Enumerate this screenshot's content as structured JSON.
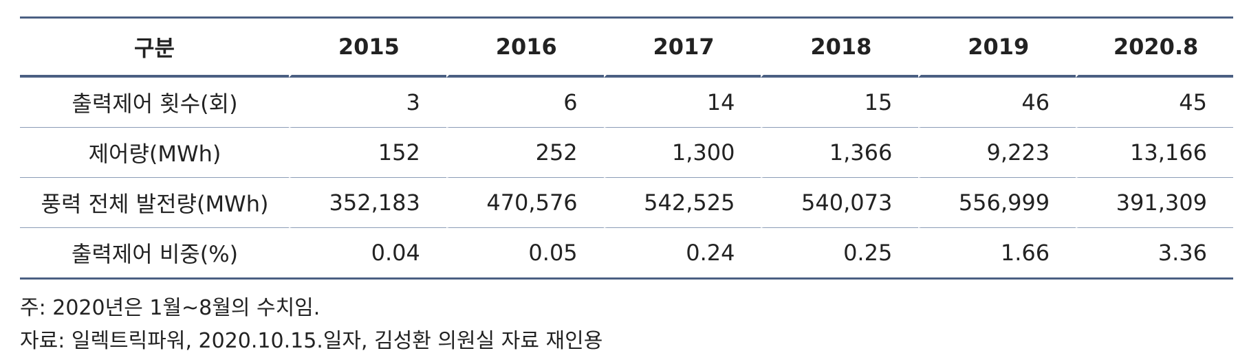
{
  "table": {
    "header": [
      "구분",
      "2015",
      "2016",
      "2017",
      "2018",
      "2019",
      "2020.8"
    ],
    "rows": [
      [
        "출력제어 횟수(회)",
        "3",
        "6",
        "14",
        "15",
        "46",
        "45"
      ],
      [
        "제어량(MWh)",
        "152",
        "252",
        "1,300",
        "1,366",
        "9,223",
        "13,166"
      ],
      [
        "풍력 전체 발전량(MWh)",
        "352,183",
        "470,576",
        "542,525",
        "540,073",
        "556,999",
        "391,309"
      ],
      [
        "출력제어 비중(%)",
        "0.04",
        "0.05",
        "0.24",
        "0.25",
        "1.66",
        "3.36"
      ]
    ]
  },
  "notes": [
    "주: 2020년은 1월~8월의 수치임.",
    "자료: 일렉트릭파워, 2020.10.15.일자, 김성환 의원실 자료 재인용"
  ]
}
